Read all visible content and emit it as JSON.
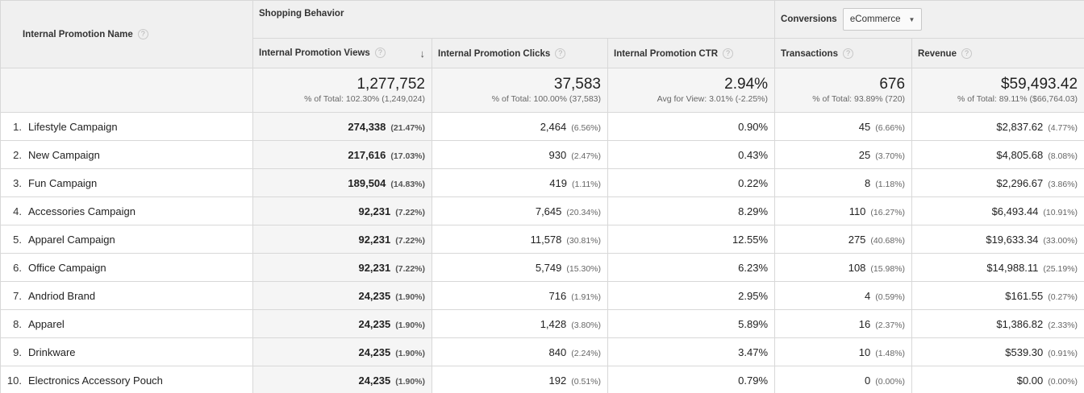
{
  "header": {
    "dimension_label": "Internal Promotion Name",
    "group_shopping": "Shopping Behavior",
    "group_conversions": "Conversions",
    "conversions_select": "eCommerce",
    "columns": [
      {
        "label": "Internal Promotion Views",
        "sorted": "desc"
      },
      {
        "label": "Internal Promotion Clicks"
      },
      {
        "label": "Internal Promotion CTR"
      },
      {
        "label": "Transactions"
      },
      {
        "label": "Revenue"
      }
    ],
    "help_glyph": "?",
    "sort_glyph": "↓"
  },
  "totals": [
    {
      "value": "1,277,752",
      "sub": "% of Total: 102.30% (1,249,024)"
    },
    {
      "value": "37,583",
      "sub": "% of Total: 100.00% (37,583)"
    },
    {
      "value": "2.94%",
      "sub": "Avg for View: 3.01% (-2.25%)"
    },
    {
      "value": "676",
      "sub": "% of Total: 93.89% (720)"
    },
    {
      "value": "$59,493.42",
      "sub": "% of Total: 89.11% ($66,764.03)"
    }
  ],
  "rows": [
    {
      "index": "1.",
      "name": "Lifestyle Campaign",
      "views": "274,338",
      "views_pct": "(21.47%)",
      "clicks": "2,464",
      "clicks_pct": "(6.56%)",
      "ctr": "0.90%",
      "transactions": "45",
      "transactions_pct": "(6.66%)",
      "revenue": "$2,837.62",
      "revenue_pct": "(4.77%)"
    },
    {
      "index": "2.",
      "name": "New Campaign",
      "views": "217,616",
      "views_pct": "(17.03%)",
      "clicks": "930",
      "clicks_pct": "(2.47%)",
      "ctr": "0.43%",
      "transactions": "25",
      "transactions_pct": "(3.70%)",
      "revenue": "$4,805.68",
      "revenue_pct": "(8.08%)"
    },
    {
      "index": "3.",
      "name": "Fun Campaign",
      "views": "189,504",
      "views_pct": "(14.83%)",
      "clicks": "419",
      "clicks_pct": "(1.11%)",
      "ctr": "0.22%",
      "transactions": "8",
      "transactions_pct": "(1.18%)",
      "revenue": "$2,296.67",
      "revenue_pct": "(3.86%)"
    },
    {
      "index": "4.",
      "name": "Accessories Campaign",
      "views": "92,231",
      "views_pct": "(7.22%)",
      "clicks": "7,645",
      "clicks_pct": "(20.34%)",
      "ctr": "8.29%",
      "transactions": "110",
      "transactions_pct": "(16.27%)",
      "revenue": "$6,493.44",
      "revenue_pct": "(10.91%)"
    },
    {
      "index": "5.",
      "name": "Apparel Campaign",
      "views": "92,231",
      "views_pct": "(7.22%)",
      "clicks": "11,578",
      "clicks_pct": "(30.81%)",
      "ctr": "12.55%",
      "transactions": "275",
      "transactions_pct": "(40.68%)",
      "revenue": "$19,633.34",
      "revenue_pct": "(33.00%)"
    },
    {
      "index": "6.",
      "name": "Office Campaign",
      "views": "92,231",
      "views_pct": "(7.22%)",
      "clicks": "5,749",
      "clicks_pct": "(15.30%)",
      "ctr": "6.23%",
      "transactions": "108",
      "transactions_pct": "(15.98%)",
      "revenue": "$14,988.11",
      "revenue_pct": "(25.19%)"
    },
    {
      "index": "7.",
      "name": "Andriod Brand",
      "views": "24,235",
      "views_pct": "(1.90%)",
      "clicks": "716",
      "clicks_pct": "(1.91%)",
      "ctr": "2.95%",
      "transactions": "4",
      "transactions_pct": "(0.59%)",
      "revenue": "$161.55",
      "revenue_pct": "(0.27%)"
    },
    {
      "index": "8.",
      "name": "Apparel",
      "views": "24,235",
      "views_pct": "(1.90%)",
      "clicks": "1,428",
      "clicks_pct": "(3.80%)",
      "ctr": "5.89%",
      "transactions": "16",
      "transactions_pct": "(2.37%)",
      "revenue": "$1,386.82",
      "revenue_pct": "(2.33%)"
    },
    {
      "index": "9.",
      "name": "Drinkware",
      "views": "24,235",
      "views_pct": "(1.90%)",
      "clicks": "840",
      "clicks_pct": "(2.24%)",
      "ctr": "3.47%",
      "transactions": "10",
      "transactions_pct": "(1.48%)",
      "revenue": "$539.30",
      "revenue_pct": "(0.91%)"
    },
    {
      "index": "10.",
      "name": "Electronics Accessory Pouch",
      "views": "24,235",
      "views_pct": "(1.90%)",
      "clicks": "192",
      "clicks_pct": "(0.51%)",
      "ctr": "0.79%",
      "transactions": "0",
      "transactions_pct": "(0.00%)",
      "revenue": "$0.00",
      "revenue_pct": "(0.00%)"
    }
  ]
}
